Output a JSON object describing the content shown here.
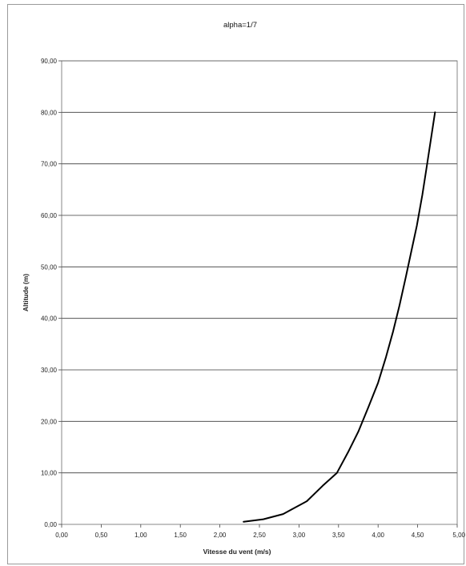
{
  "chart_data": {
    "type": "line",
    "title": "alpha=1/7",
    "xlabel": "Vitesse du vent (m/s)",
    "ylabel": "Altitude (m)",
    "xlim": [
      0,
      5
    ],
    "ylim": [
      0,
      90
    ],
    "x_ticks": [
      "0,00",
      "0,50",
      "1,00",
      "1,50",
      "2,00",
      "2,50",
      "3,00",
      "3,50",
      "4,00",
      "4,50",
      "5,00"
    ],
    "y_ticks": [
      "0,00",
      "10,00",
      "20,00",
      "30,00",
      "40,00",
      "50,00",
      "60,00",
      "70,00",
      "80,00",
      "90,00"
    ],
    "grid": "horizontal",
    "legend": "none",
    "series": [
      {
        "color": "#000000",
        "x": [
          2.3,
          2.55,
          2.8,
          3.1,
          3.3,
          3.48,
          3.62,
          3.75,
          3.87,
          4.0,
          4.1,
          4.19,
          4.27,
          4.35,
          4.42,
          4.49,
          4.56,
          4.61,
          4.67,
          4.72
        ],
        "y": [
          0.5,
          1.0,
          2.0,
          4.5,
          7.5,
          10.0,
          14.0,
          18.0,
          22.5,
          27.5,
          32.5,
          37.5,
          42.5,
          48.0,
          53.0,
          58.0,
          64.0,
          69.0,
          75.0,
          80.0
        ]
      }
    ]
  }
}
